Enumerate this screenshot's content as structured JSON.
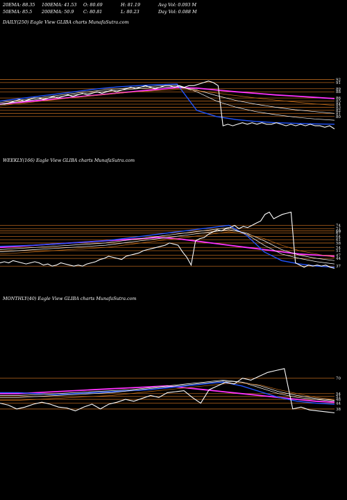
{
  "header": {
    "row1": [
      {
        "label": "20EMA: 88.35"
      },
      {
        "label": "100EMA: 41.53"
      },
      {
        "label": "O: 80.69"
      },
      {
        "label": "H: 81.19"
      },
      {
        "label": "Avg Vol: 0.093  M"
      }
    ],
    "row2": [
      {
        "label": "50EMA: 85.5"
      },
      {
        "label": "200EMA: 50.9"
      },
      {
        "label": "C: 80.81"
      },
      {
        "label": "L: 80.23"
      },
      {
        "label": "Day Vol: 0.088  M"
      }
    ]
  },
  "panels": [
    {
      "title": "DAILY(250) Eagle   View  GLIBA charts MunafaSutra.com"
    },
    {
      "title": "WEEKLY(166) Eagle   View  GLIBA charts MunafaSutra.com"
    },
    {
      "title": "MONTHLY(40) Eagle   View  GLIBA charts MunafaSutra.com"
    }
  ],
  "chart_data": [
    {
      "type": "line",
      "timeframe": "DAILY",
      "bars": 250,
      "ylim": [
        75,
        93
      ],
      "levels": [
        {
          "value": 92
        },
        {
          "value": 91
        },
        {
          "value": 89
        },
        {
          "value": 88
        },
        {
          "value": 86
        },
        {
          "value": 85
        },
        {
          "value": 84
        },
        {
          "value": 83
        },
        {
          "value": 82
        },
        {
          "value": 81
        },
        {
          "value": 80
        }
      ],
      "close": [
        84,
        84,
        84.5,
        85,
        85.5,
        85,
        85.5,
        86,
        86,
        85.5,
        86,
        86.5,
        86,
        86.5,
        87,
        86.5,
        87,
        87.5,
        87,
        87.5,
        88,
        87.5,
        88,
        88.5,
        88,
        88.5,
        89,
        89.5,
        89,
        89.5,
        90,
        89.5,
        89,
        89.5,
        90,
        90,
        89.5,
        90,
        89.5,
        90,
        90,
        90.5,
        91,
        91.5,
        91,
        90,
        77,
        77.5,
        77,
        77.5,
        78,
        77.5,
        78,
        77.5,
        78,
        77.5,
        77.5,
        78,
        77.5,
        77,
        77.5,
        77,
        77.5,
        77,
        77.5,
        77,
        77,
        76.5,
        77,
        76
      ],
      "series": [
        {
          "color": "#ff33ff",
          "values": [
            84,
            84.6,
            85.2,
            85.8,
            86.4,
            87,
            87.6,
            88.2,
            88.8,
            89.4,
            89.2,
            88.6,
            88,
            87.5,
            87,
            86.6,
            86.2,
            85.8
          ]
        },
        {
          "color": "#2255ff",
          "values": [
            85,
            85.8,
            86.6,
            87.4,
            88.2,
            89,
            89.6,
            90,
            90.3,
            90.5,
            82,
            80,
            79,
            78.4,
            78,
            77.8,
            77.6,
            77.5
          ]
        },
        {
          "color": "#ffffff",
          "values": [
            84.5,
            85.3,
            86.1,
            86.9,
            87.7,
            88.4,
            89,
            89.5,
            89.9,
            90.1,
            88,
            85,
            83,
            81.6,
            80.6,
            79.8,
            79.2,
            78.8
          ]
        },
        {
          "color": "#ffffff",
          "values": [
            84,
            84.8,
            85.6,
            86.4,
            87.2,
            87.9,
            88.5,
            89,
            89.4,
            89.7,
            88.6,
            86.8,
            85.2,
            84,
            83,
            82.2,
            81.6,
            81
          ]
        },
        {
          "color": "#c8701a",
          "values": [
            83.5,
            84.2,
            84.9,
            85.6,
            86.3,
            86.9,
            87.5,
            88,
            88.4,
            88.8,
            88.4,
            87.6,
            86.8,
            86,
            85.3,
            84.7,
            84.1,
            83.6
          ]
        }
      ]
    },
    {
      "type": "line",
      "timeframe": "WEEKLY",
      "bars": 166,
      "ylim": [
        34,
        80
      ],
      "levels": [
        {
          "value": 74
        },
        {
          "value": 71
        },
        {
          "value": 69
        },
        {
          "value": 67
        },
        {
          "value": 64
        },
        {
          "value": 61
        },
        {
          "value": 58
        },
        {
          "value": 54
        },
        {
          "value": 51
        },
        {
          "value": 47
        },
        {
          "value": 44
        },
        {
          "value": 37
        }
      ],
      "close": [
        40,
        41,
        40,
        42,
        41,
        40,
        39,
        40,
        41,
        40,
        38,
        39,
        37,
        38,
        40,
        39,
        38,
        37,
        38,
        37,
        39,
        40,
        41,
        43,
        44,
        46,
        45,
        44,
        43,
        46,
        47,
        48,
        49,
        51,
        52,
        53,
        54,
        55,
        56,
        58,
        57,
        56,
        50,
        45,
        38,
        60,
        62,
        63,
        66,
        68,
        70,
        69,
        71,
        72,
        74,
        71,
        73,
        72,
        74,
        76,
        78,
        84,
        86,
        80,
        82,
        84,
        85,
        86,
        40,
        38,
        36,
        38,
        37,
        38,
        37,
        38,
        36,
        35
      ],
      "series": [
        {
          "color": "#ff33ff",
          "values": [
            54,
            55,
            56,
            57,
            58,
            59,
            60,
            61,
            62,
            63,
            62,
            60,
            58,
            56,
            54,
            52,
            50,
            48,
            47,
            46
          ]
        },
        {
          "color": "#2255ff",
          "values": [
            55,
            55.5,
            56,
            57,
            58,
            59,
            60,
            62,
            64,
            66,
            68,
            70,
            72,
            74,
            65,
            50,
            42,
            39,
            37,
            36
          ]
        },
        {
          "color": "#ffffff",
          "values": [
            52,
            53,
            54,
            55,
            56,
            57,
            58,
            60,
            62,
            64,
            66,
            68,
            70,
            72,
            66,
            56,
            48,
            44,
            41,
            39
          ]
        },
        {
          "color": "#ffffff",
          "values": [
            50,
            51,
            52,
            53,
            54,
            55,
            56,
            58,
            60,
            62,
            64,
            66,
            68,
            70,
            67,
            60,
            52,
            47,
            44,
            42
          ]
        },
        {
          "color": "#c8701a",
          "values": [
            48,
            49,
            50,
            51,
            52,
            53,
            54,
            56,
            58,
            60,
            62,
            64,
            66,
            68,
            66,
            62,
            56,
            51,
            48,
            45
          ]
        }
      ]
    },
    {
      "type": "line",
      "timeframe": "MONTHLY",
      "bars": 40,
      "ylim": [
        30,
        95
      ],
      "levels": [
        {
          "value": 70
        },
        {
          "value": 54
        },
        {
          "value": 51
        },
        {
          "value": 48
        },
        {
          "value": 44
        },
        {
          "value": 38
        }
      ],
      "close": [
        44,
        42,
        38,
        40,
        43,
        45,
        43,
        40,
        39,
        36,
        40,
        43,
        38,
        43,
        45,
        48,
        46,
        49,
        52,
        50,
        55,
        56,
        57,
        50,
        44,
        58,
        62,
        66,
        64,
        70,
        68,
        72,
        76,
        78,
        80,
        38,
        40,
        37,
        36,
        35,
        34
      ],
      "series": [
        {
          "color": "#ff33ff",
          "values": [
            54,
            54,
            55,
            56,
            57,
            58,
            59,
            60,
            61,
            62,
            60,
            58,
            56,
            54,
            52,
            50,
            48,
            46,
            45
          ]
        },
        {
          "color": "#2255ff",
          "values": [
            55,
            55,
            54,
            53,
            54,
            55,
            56,
            57,
            58,
            60,
            62,
            64,
            66,
            62,
            56,
            50,
            46,
            44,
            43
          ]
        },
        {
          "color": "#ffffff",
          "values": [
            52,
            52,
            53,
            54,
            55,
            56,
            57,
            58,
            60,
            62,
            64,
            66,
            68,
            66,
            60,
            54,
            50,
            48,
            46
          ]
        },
        {
          "color": "#ffffff",
          "values": [
            50,
            50,
            51,
            52,
            53,
            54,
            55,
            57,
            59,
            61,
            63,
            65,
            67,
            66,
            62,
            56,
            52,
            49,
            47
          ]
        },
        {
          "color": "#c8701a",
          "values": [
            47,
            47,
            48,
            49,
            50,
            51,
            52,
            54,
            56,
            58,
            60,
            62,
            64,
            65,
            63,
            58,
            54,
            50,
            48
          ]
        }
      ]
    }
  ]
}
